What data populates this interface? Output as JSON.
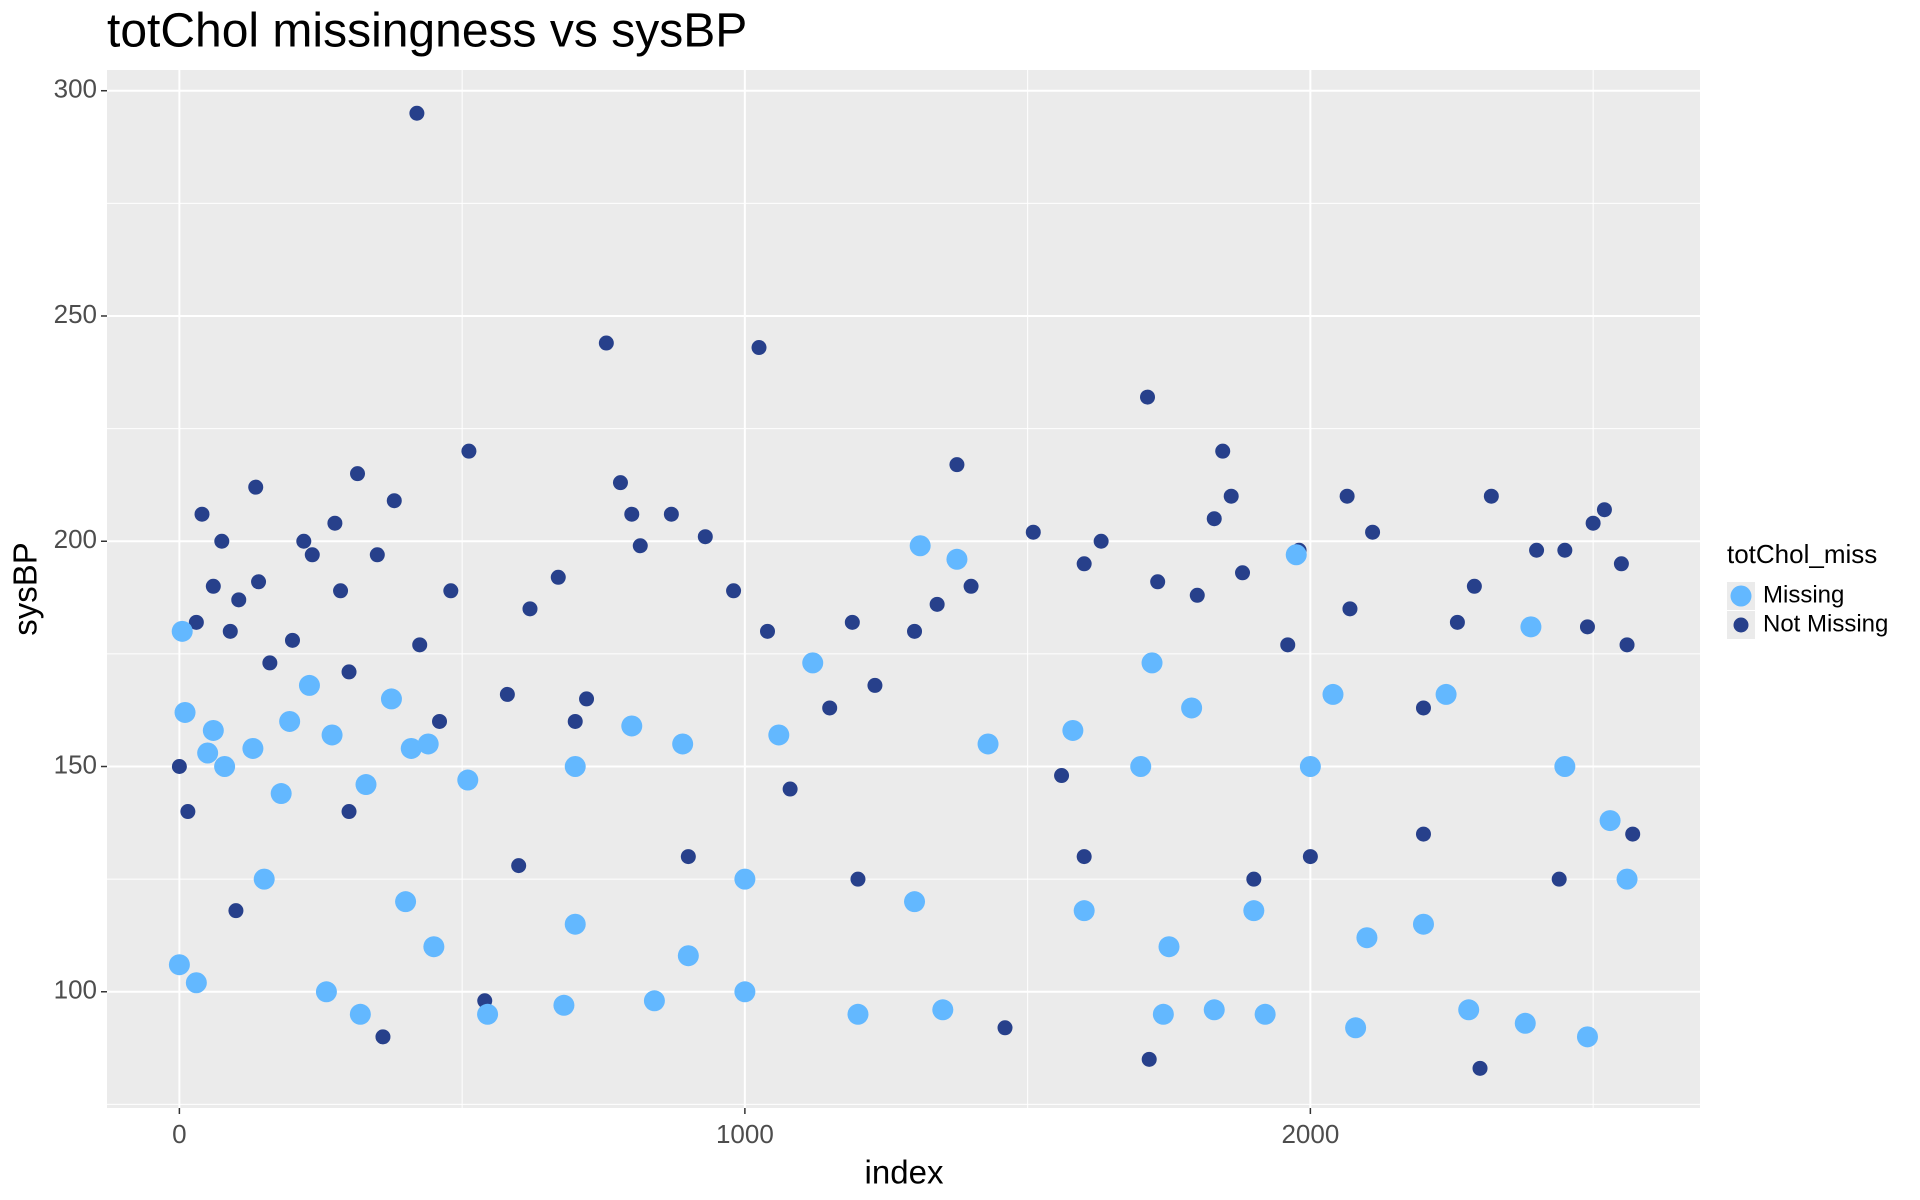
{
  "chart_data": {
    "type": "scatter",
    "title": "totChol missingness vs sysBP",
    "x_label": "index",
    "y_label": "sysBP",
    "legend_title": "totChol_miss",
    "legend_position": "right",
    "grid": true,
    "xlim": [
      -128,
      2689
    ],
    "ylim": [
      74.2,
      304.6
    ],
    "xticks": [
      0,
      1000,
      2000
    ],
    "yticks": [
      100,
      150,
      200,
      250,
      300
    ],
    "series": [
      {
        "name": "Missing",
        "color": "#63b8ff",
        "x": [
          0,
          5,
          10,
          30,
          50,
          60,
          80,
          130,
          180,
          195,
          230,
          260,
          270,
          320,
          330,
          375,
          410,
          440,
          510,
          545,
          680,
          700,
          800,
          840,
          890,
          1000,
          1060,
          1120,
          1200,
          1310,
          1350,
          1375,
          1430,
          1580,
          1700,
          1720,
          1740,
          1790,
          1830,
          1920,
          1975,
          2000,
          2040,
          2080,
          2240,
          2280,
          2380,
          2390,
          2450,
          2490,
          2530,
          2560,
          150,
          400,
          700,
          1000,
          1300,
          1600,
          1900,
          2200,
          450,
          900,
          1750,
          2100
        ],
        "y": [
          106,
          180,
          162,
          102,
          153,
          158,
          150,
          154,
          144,
          160,
          168,
          100,
          157,
          95,
          146,
          165,
          154,
          155,
          147,
          95,
          97,
          150,
          159,
          98,
          155,
          100,
          157,
          173,
          95,
          199,
          96,
          196,
          155,
          158,
          150,
          173,
          95,
          163,
          96,
          95,
          197,
          150,
          166,
          92,
          166,
          96,
          93,
          181,
          150,
          90,
          138,
          125,
          125,
          120,
          115,
          125,
          120,
          118,
          118,
          115,
          110,
          108,
          110,
          112
        ]
      },
      {
        "name": "Not Missing",
        "color": "#27408b",
        "x": [
          0,
          15,
          30,
          40,
          60,
          75,
          90,
          105,
          135,
          140,
          160,
          200,
          220,
          235,
          275,
          285,
          300,
          315,
          350,
          360,
          380,
          420,
          425,
          460,
          480,
          512,
          540,
          580,
          620,
          670,
          700,
          720,
          755,
          780,
          800,
          815,
          870,
          930,
          980,
          1025,
          1040,
          1080,
          1150,
          1190,
          1230,
          1300,
          1340,
          1375,
          1400,
          1460,
          1510,
          1560,
          1600,
          1630,
          1712,
          1715,
          1730,
          1800,
          1830,
          1845,
          1860,
          1880,
          1960,
          1980,
          2000,
          2065,
          2070,
          2110,
          2200,
          2260,
          2290,
          2300,
          2320,
          2400,
          2450,
          2490,
          2500,
          2520,
          2550,
          2560,
          2570,
          2440,
          2200,
          1900,
          1600,
          1200,
          900,
          600,
          300,
          100
        ],
        "y": [
          150,
          140,
          182,
          206,
          190,
          200,
          180,
          187,
          212,
          191,
          173,
          178,
          200,
          197,
          204,
          189,
          171,
          215,
          197,
          90,
          209,
          295,
          177,
          160,
          189,
          220,
          98,
          166,
          185,
          192,
          160,
          165,
          244,
          213,
          206,
          199,
          206,
          201,
          189,
          243,
          180,
          145,
          163,
          182,
          168,
          180,
          186,
          217,
          190,
          92,
          202,
          148,
          195,
          200,
          232,
          85,
          191,
          188,
          205,
          220,
          210,
          193,
          177,
          198,
          130,
          210,
          185,
          202,
          163,
          182,
          190,
          83,
          210,
          198,
          198,
          181,
          204,
          207,
          195,
          177,
          135,
          125,
          135,
          125,
          130,
          125,
          130,
          128,
          140,
          118
        ]
      }
    ]
  }
}
